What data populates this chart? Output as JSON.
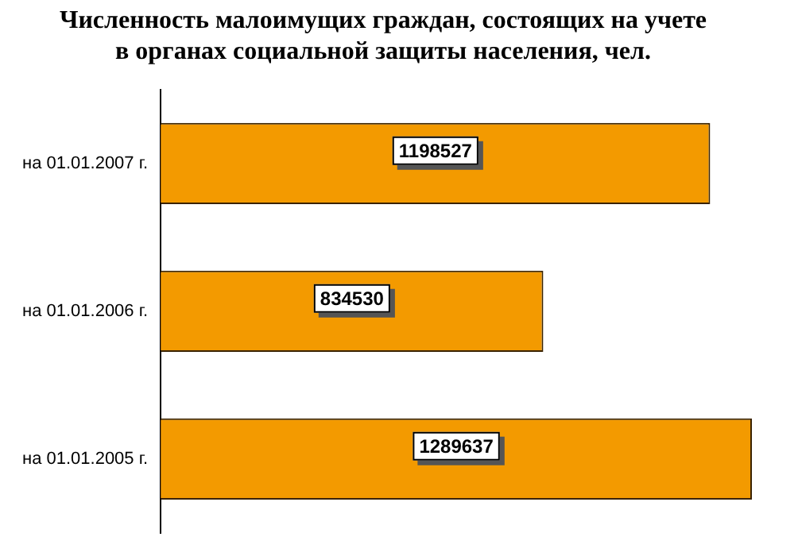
{
  "chart_data": {
    "type": "bar",
    "orientation": "horizontal",
    "title": "Численность малоимущих граждан, состоящих на учете\nв органах социальной защиты населения, чел.",
    "categories": [
      "на 01.01.2007 г.",
      "на 01.01.2006 г.",
      "на 01.01.2005 г."
    ],
    "values": [
      1198527,
      834530,
      1289637
    ],
    "color": "#f39a00",
    "xlim": [
      0,
      1300000
    ],
    "tick_labels": "y",
    "grid": false,
    "legend": false,
    "data_labels": true
  }
}
